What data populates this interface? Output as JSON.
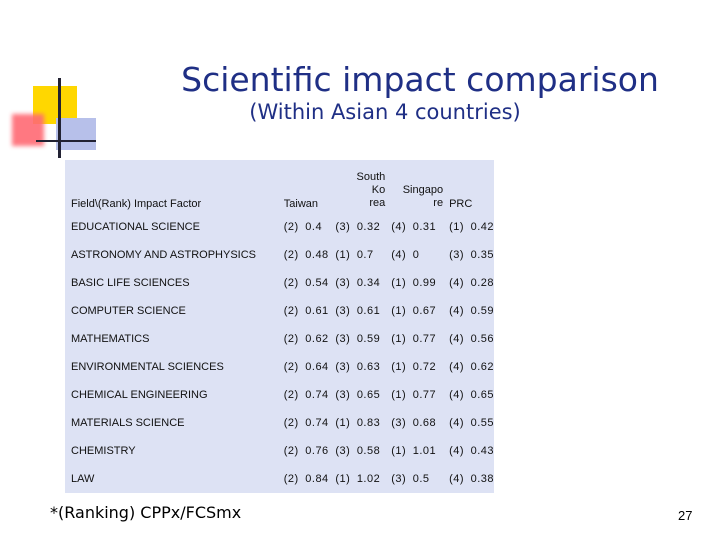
{
  "slide": {
    "title": "Scientific impact comparison",
    "subtitle": "(Within Asian 4 countries)",
    "footnote": "*(Ranking) CPPx/FCSmx",
    "page_number": "27",
    "colors": {
      "title": "#1f2f85",
      "table_bg": "#dde2f4"
    }
  },
  "table": {
    "headers": {
      "field": "Field\\(Rank) Impact Factor",
      "taiwan": "Taiwan",
      "korea_line1": "South",
      "korea_line2": "Ko",
      "korea_line3": "rea",
      "singapore_line1": "Singapo",
      "singapore_line2": "re",
      "prc": "PRC"
    },
    "rows": [
      {
        "field": "EDUCATIONAL SCIENCE",
        "taiwan": "(2) 0.4",
        "korea": "(3) 0.32",
        "singapore": "(4) 0.31",
        "prc": "(1) 0.42"
      },
      {
        "field": "ASTRONOMY AND ASTROPHYSICS",
        "taiwan": "(2) 0.48",
        "korea": "(1) 0.7",
        "singapore": "(4) 0",
        "prc": "(3) 0.35"
      },
      {
        "field": "BASIC LIFE SCIENCES",
        "taiwan": "(2) 0.54",
        "korea": "(3) 0.34",
        "singapore": "(1) 0.99",
        "prc": "(4) 0.28"
      },
      {
        "field": "COMPUTER SCIENCE",
        "taiwan": "(2) 0.61",
        "korea": "(3) 0.61",
        "singapore": "(1) 0.67",
        "prc": "(4) 0.59"
      },
      {
        "field": "MATHEMATICS",
        "taiwan": "(2) 0.62",
        "korea": "(3) 0.59",
        "singapore": "(1) 0.77",
        "prc": "(4) 0.56"
      },
      {
        "field": "ENVIRONMENTAL SCIENCES",
        "taiwan": "(2) 0.64",
        "korea": "(3) 0.63",
        "singapore": "(1) 0.72",
        "prc": "(4) 0.62"
      },
      {
        "field": "CHEMICAL ENGINEERING",
        "taiwan": "(2) 0.74",
        "korea": "(3) 0.65",
        "singapore": "(1) 0.77",
        "prc": "(4) 0.65"
      },
      {
        "field": "MATERIALS SCIENCE",
        "taiwan": "(2) 0.74",
        "korea": "(1) 0.83",
        "singapore": "(3) 0.68",
        "prc": "(4) 0.55"
      },
      {
        "field": "CHEMISTRY",
        "taiwan": "(2) 0.76",
        "korea": "(3) 0.58",
        "singapore": "(1) 1.01",
        "prc": "(4) 0.43"
      },
      {
        "field": "LAW",
        "taiwan": "(2) 0.84",
        "korea": "(1) 1.02",
        "singapore": "(3) 0.5",
        "prc": "(4) 0.38"
      }
    ]
  }
}
